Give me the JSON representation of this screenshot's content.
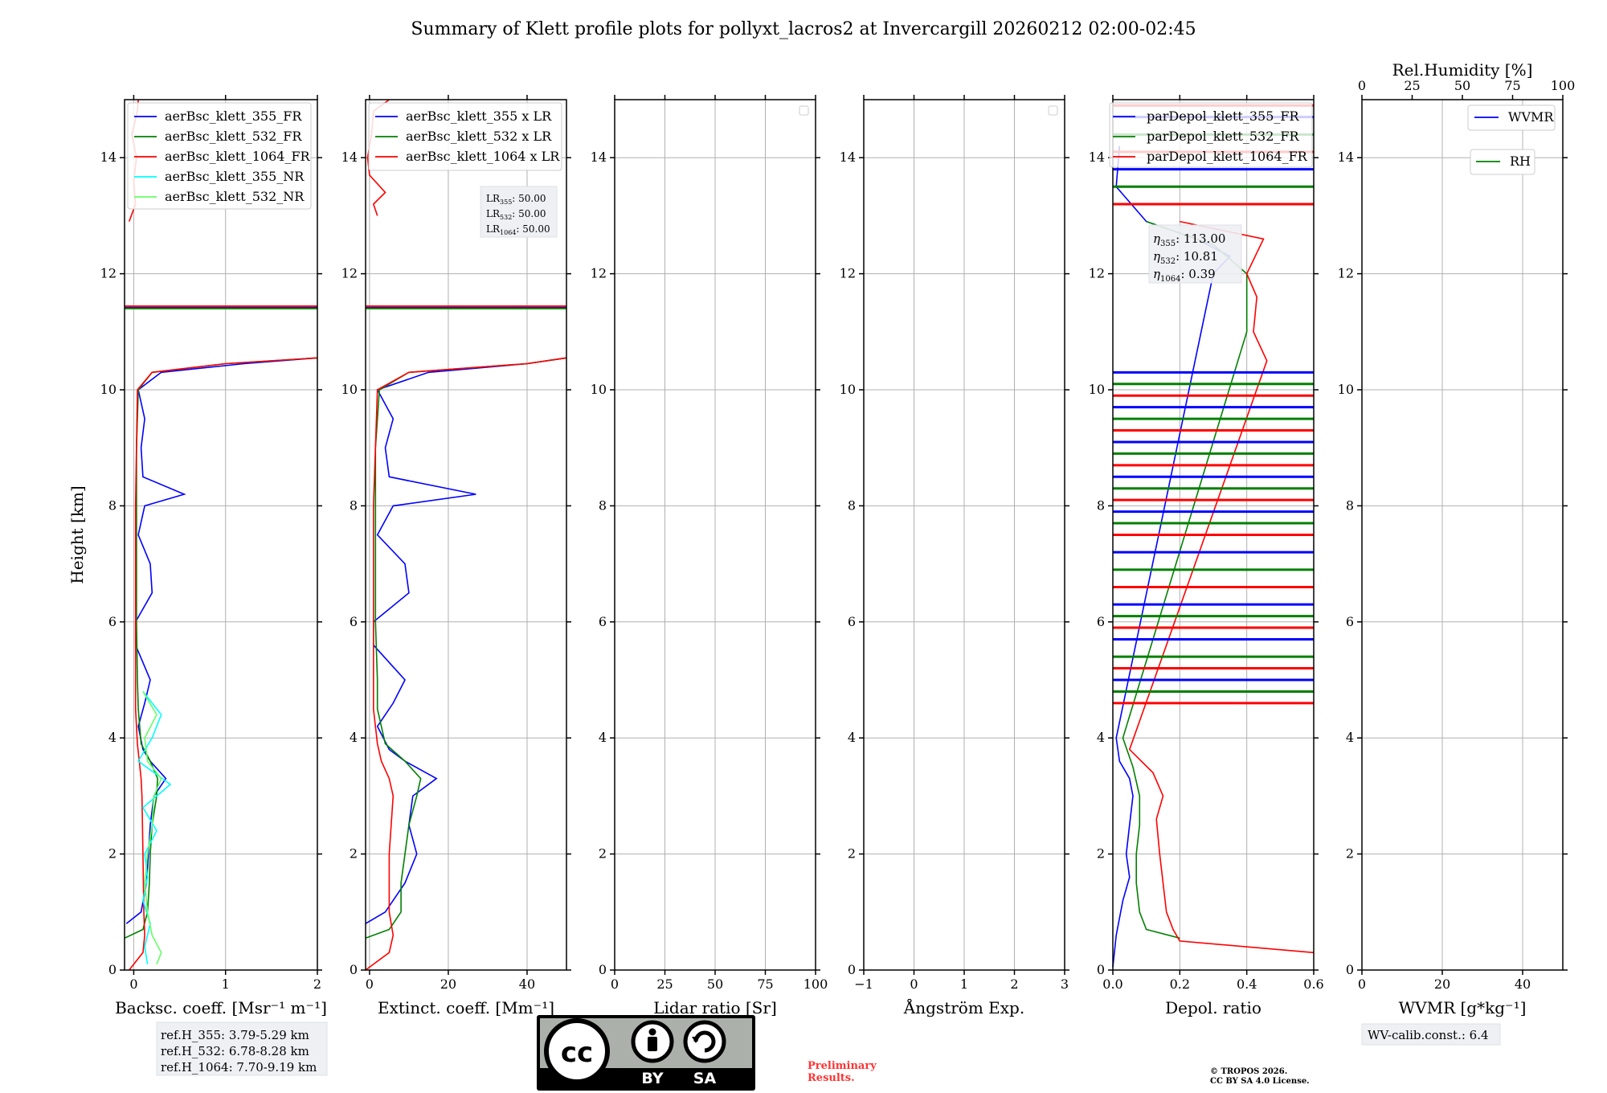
{
  "title": "Summary of Klett profile plots for pollyxt_lacros2 at Invercargill 20260212 02:00-02:45",
  "colors": {
    "b355": "#0000ff",
    "b532": "#008000",
    "b1064": "#ff0000",
    "nr355": "#00ffff",
    "nr532": "#66ff66",
    "grid": "#b0b0b0"
  },
  "chart_data": [
    {
      "id": "bsc",
      "type": "line",
      "xlabel": "Backsc. coeff. [Msr⁻¹ m⁻¹]",
      "ylabel": "Height [km]",
      "xlim": [
        -0.1,
        2
      ],
      "ylim": [
        0,
        15
      ],
      "xticks": [
        "0",
        "1",
        "2"
      ],
      "xtick_values": [
        0,
        1,
        2
      ],
      "yticks": [
        "0",
        "2",
        "4",
        "6",
        "8",
        "10",
        "12",
        "14"
      ],
      "legend": [
        "aerBsc_klett_355_FR",
        "aerBsc_klett_532_FR",
        "aerBsc_klett_1064_FR",
        "aerBsc_klett_355_NR",
        "aerBsc_klett_532_NR"
      ],
      "legend_position": "upper-left",
      "series": [
        {
          "name": "aerBsc_klett_355_FR",
          "color": "#0000ff",
          "y": [
            0.8,
            1,
            1.5,
            2,
            2.5,
            3,
            3.3,
            3.6,
            3.8,
            4.2,
            4.6,
            5.0,
            5.3,
            5.6,
            6,
            6.5,
            7,
            7.5,
            8,
            8.2,
            8.5,
            9,
            9.5,
            10,
            10.3,
            10.45,
            10.55
          ],
          "x": [
            -0.08,
            0.08,
            0.14,
            0.16,
            0.18,
            0.22,
            0.35,
            0.18,
            0.1,
            0.05,
            0.12,
            0.18,
            0.1,
            0.02,
            0.02,
            0.2,
            0.18,
            0.05,
            0.12,
            0.55,
            0.1,
            0.08,
            0.12,
            0.05,
            0.3,
            1.2,
            2.0
          ]
        },
        {
          "name": "aerBsc_klett_532_FR",
          "color": "#008000",
          "y": [
            0.55,
            0.7,
            1,
            1.5,
            2,
            2.5,
            3,
            3.3,
            3.6,
            3.9,
            4.5,
            5,
            6,
            7,
            8,
            9,
            10,
            10.3,
            10.45,
            10.55
          ],
          "x": [
            -0.1,
            0.1,
            0.15,
            0.17,
            0.18,
            0.2,
            0.25,
            0.26,
            0.18,
            0.08,
            0.05,
            0.04,
            0.03,
            0.03,
            0.03,
            0.03,
            0.05,
            0.2,
            1.0,
            2.0
          ]
        },
        {
          "name": "aerBsc_klett_1064_FR",
          "color": "#ff0000",
          "y": [
            0,
            0.3,
            0.6,
            1,
            2,
            3,
            3.3,
            3.6,
            3.9,
            4.5,
            6,
            8,
            10,
            10.3,
            10.45,
            10.55
          ],
          "x": [
            -0.05,
            0.1,
            0.12,
            0.11,
            0.1,
            0.09,
            0.08,
            0.06,
            0.04,
            0.02,
            0.02,
            0.02,
            0.04,
            0.2,
            1.0,
            2.0
          ]
        },
        {
          "name": "aerBsc_klett_1064_FR_upper",
          "color": "#ff0000",
          "y": [
            12.9,
            13.2,
            13.6,
            14,
            14.4,
            14.8,
            15
          ],
          "x": [
            -0.05,
            0.02,
            0.0,
            0.03,
            -0.02,
            0.04,
            0.05
          ]
        },
        {
          "name": "aerBsc_klett_355_NR",
          "color": "#00ffff",
          "y": [
            0.1,
            0.4,
            0.8,
            1.2,
            1.6,
            2,
            2.4,
            2.8,
            3.2,
            3.6,
            4,
            4.4,
            4.8
          ],
          "x": [
            0.15,
            0.12,
            0.18,
            0.1,
            0.15,
            0.12,
            0.25,
            0.1,
            0.4,
            0.05,
            0.2,
            0.3,
            0.1
          ]
        },
        {
          "name": "aerBsc_klett_532_NR",
          "color": "#66ff66",
          "y": [
            0.1,
            0.3,
            0.6,
            1,
            1.5,
            2,
            2.5,
            3,
            3.3,
            3.6,
            4,
            4.4,
            4.8
          ],
          "x": [
            0.25,
            0.3,
            0.2,
            0.15,
            0.12,
            0.15,
            0.2,
            0.22,
            0.3,
            0.15,
            0.12,
            0.25,
            0.1
          ]
        }
      ],
      "hlines": [
        {
          "y": 11.42,
          "color": "#0000ff"
        },
        {
          "y": 11.44,
          "color": "#ff0000"
        },
        {
          "y": 11.4,
          "color": "#008000"
        }
      ]
    },
    {
      "id": "ext",
      "type": "line",
      "xlabel": "Extinct. coeff. [Mm⁻¹]",
      "xlim": [
        -1,
        50
      ],
      "ylim": [
        0,
        15
      ],
      "xticks": [
        "0",
        "20",
        "40"
      ],
      "xtick_values": [
        0,
        20,
        40
      ],
      "yticks": [
        "0",
        "2",
        "4",
        "6",
        "8",
        "10",
        "12",
        "14"
      ],
      "legend": [
        "aerBsc_klett_355 x LR",
        "aerBsc_klett_532 x LR",
        "aerBsc_klett_1064 x LR"
      ],
      "legend_position": "upper-left",
      "lr_text": [
        "LR",
        "355",
        ": 50.00",
        "LR",
        "532",
        ": 50.00",
        "LR",
        "1064",
        ": 50.00"
      ],
      "series": [
        {
          "name": "aerBsc_klett_355 x LR",
          "color": "#0000ff",
          "y": [
            0.8,
            1,
            1.5,
            2,
            2.5,
            3,
            3.3,
            3.6,
            3.8,
            4.2,
            4.6,
            5.0,
            5.3,
            5.6,
            6,
            6.5,
            7,
            7.5,
            8,
            8.2,
            8.5,
            9,
            9.5,
            10,
            10.3,
            10.45,
            10.55
          ],
          "x": [
            -1,
            4,
            9,
            12,
            10,
            11,
            17,
            9,
            5,
            2,
            6,
            9,
            5,
            1,
            1,
            10,
            9,
            2,
            6,
            27,
            5,
            4,
            6,
            2,
            15,
            40,
            50
          ]
        },
        {
          "name": "aerBsc_klett_532 x LR",
          "color": "#008000",
          "y": [
            0.55,
            0.7,
            1,
            1.5,
            2,
            2.5,
            3,
            3.3,
            3.6,
            3.9,
            4.5,
            5,
            6,
            7,
            8,
            9,
            10,
            10.3,
            10.45,
            10.55
          ],
          "x": [
            -1,
            5,
            8,
            8,
            9,
            10,
            12,
            13,
            9,
            4,
            2,
            2,
            1.5,
            1.5,
            1.5,
            1.5,
            2.5,
            10,
            40,
            50
          ]
        },
        {
          "name": "aerBsc_klett_1064 x LR",
          "color": "#ff0000",
          "y": [
            0,
            0.3,
            0.6,
            1,
            2,
            3,
            3.3,
            3.6,
            3.9,
            4.5,
            6,
            8,
            10,
            10.3,
            10.45,
            10.55
          ],
          "x": [
            -1,
            5,
            6,
            5,
            5,
            6,
            5,
            3,
            2,
            1,
            1,
            1,
            2,
            10,
            40,
            50
          ]
        },
        {
          "name": "aerBsc_klett_1064 x LR upper",
          "color": "#ff0000",
          "y": [
            13.0,
            13.2,
            13.4,
            13.7,
            14,
            14.4,
            14.8,
            15
          ],
          "x": [
            2,
            1,
            4,
            0,
            -0.5,
            0.5,
            1,
            5
          ]
        }
      ],
      "hlines": [
        {
          "y": 11.42,
          "color": "#0000ff"
        },
        {
          "y": 11.44,
          "color": "#ff0000"
        },
        {
          "y": 11.4,
          "color": "#008000"
        }
      ]
    },
    {
      "id": "lr",
      "type": "line",
      "xlabel": "Lidar ratio [Sr]",
      "xlim": [
        0,
        100
      ],
      "ylim": [
        0,
        15
      ],
      "xticks": [
        "0",
        "25",
        "50",
        "75",
        "100"
      ],
      "xtick_values": [
        0,
        25,
        50,
        75,
        100
      ],
      "yticks": [
        "0",
        "2",
        "4",
        "6",
        "8",
        "10",
        "12",
        "14"
      ],
      "series": []
    },
    {
      "id": "ae",
      "type": "line",
      "xlabel": "Ångström Exp.",
      "xlim": [
        -1,
        3
      ],
      "ylim": [
        0,
        15
      ],
      "xticks": [
        "−1",
        "0",
        "1",
        "2",
        "3"
      ],
      "xtick_values": [
        -1,
        0,
        1,
        2,
        3
      ],
      "yticks": [
        "0",
        "2",
        "4",
        "6",
        "8",
        "10",
        "12",
        "14"
      ],
      "series": []
    },
    {
      "id": "depol",
      "type": "line",
      "xlabel": "Depol. ratio",
      "xlim": [
        0,
        0.6
      ],
      "ylim": [
        0,
        15
      ],
      "xticks": [
        "0.0",
        "0.2",
        "0.4",
        "0.6"
      ],
      "xtick_values": [
        0,
        0.2,
        0.4,
        0.6
      ],
      "yticks": [
        "0",
        "2",
        "4",
        "6",
        "8",
        "10",
        "12",
        "14"
      ],
      "legend": [
        "parDepol_klett_355_FR",
        "parDepol_klett_532_FR",
        "parDepol_klett_1064_FR"
      ],
      "legend_position": "upper-left",
      "eta_text": [
        "η",
        "355",
        ": 113.00",
        "η",
        "532",
        ": 10.81",
        "η",
        "1064",
        ": 0.39"
      ],
      "series": [
        {
          "name": "parDepol_klett_355_FR",
          "color": "#0000ff",
          "y": [
            0.05,
            0.6,
            1.2,
            1.6,
            2,
            2.5,
            3,
            3.3,
            3.6,
            4.0,
            12.0,
            12.3,
            12.6,
            12.9,
            13.5,
            14.2
          ],
          "x": [
            0.0,
            0.01,
            0.03,
            0.05,
            0.04,
            0.05,
            0.06,
            0.05,
            0.02,
            0.01,
            0.3,
            0.35,
            0.25,
            0.1,
            0.01,
            0.02
          ]
        },
        {
          "name": "parDepol_klett_532_FR",
          "color": "#008000",
          "y": [
            0.55,
            0.7,
            1,
            1.5,
            2,
            2.5,
            3,
            3.5,
            4.0,
            11.0,
            11.5,
            12,
            12.5,
            12.9
          ],
          "x": [
            0.2,
            0.1,
            0.08,
            0.07,
            0.07,
            0.08,
            0.08,
            0.06,
            0.03,
            0.4,
            0.4,
            0.4,
            0.3,
            0.1
          ]
        },
        {
          "name": "parDepol_klett_1064_FR",
          "color": "#ff0000",
          "y": [
            0.3,
            0.5,
            0.7,
            1,
            1.5,
            2,
            2.6,
            3.0,
            3.4,
            3.8,
            10.5,
            11,
            11.6,
            12,
            12.6,
            12.9
          ],
          "x": [
            0.6,
            0.2,
            0.18,
            0.16,
            0.15,
            0.14,
            0.13,
            0.15,
            0.12,
            0.05,
            0.46,
            0.42,
            0.43,
            0.4,
            0.45,
            0.2
          ]
        }
      ]
    },
    {
      "id": "wv",
      "type": "line",
      "xlabel": "WVMR [g*kg⁻¹]",
      "top_xlabel": "Rel.Humidity [%]",
      "xlim": [
        0,
        50
      ],
      "ylim": [
        0,
        15
      ],
      "xticks": [
        "0",
        "20",
        "40"
      ],
      "xtick_values": [
        0,
        20,
        40
      ],
      "top_xticks": [
        "0",
        "25",
        "50",
        "75",
        "100"
      ],
      "top_xtick_values": [
        0,
        25,
        50,
        75,
        100
      ],
      "yticks": [
        "0",
        "2",
        "4",
        "6",
        "8",
        "10",
        "12",
        "14"
      ],
      "legend": [
        "WVMR",
        "RH"
      ],
      "legend_position": "upper-right",
      "series": []
    }
  ],
  "annotations": {
    "refh": [
      "ref.H_355: 3.79-5.29 km",
      "ref.H_532: 6.78-8.28 km",
      "ref.H_1064: 7.70-9.19 km"
    ],
    "wv_calib": "WV-calib.const.: 6.4",
    "preliminary": [
      "Preliminary",
      "Results."
    ],
    "copyright": [
      "© TROPOS 2026.",
      "CC BY SA 4.0 License."
    ],
    "cc_badge": {
      "cc": "cc",
      "by": "BY",
      "sa": "SA"
    }
  }
}
